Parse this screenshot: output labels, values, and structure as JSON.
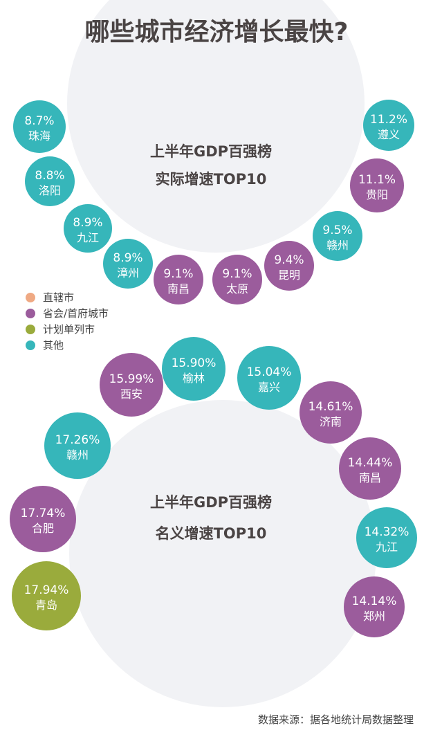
{
  "title": "哪些城市经济增长最快?",
  "legend": [
    {
      "label": "直辖市",
      "color": "#efa983"
    },
    {
      "label": "省会/首府城市",
      "color": "#9b5c9c"
    },
    {
      "label": "计划单列市",
      "color": "#9aab3c"
    },
    {
      "label": "其他",
      "color": "#36b6ba"
    }
  ],
  "source": "数据来源：据各地统计局数据整理",
  "chart_data": [
    {
      "type": "bubble",
      "title": [
        "上半年GDP百强榜",
        "实际增速TOP10"
      ],
      "unit": "%",
      "points": [
        {
          "city": "珠海",
          "value": 8.7,
          "label": "8.7%",
          "category": "其他"
        },
        {
          "city": "洛阳",
          "value": 8.8,
          "label": "8.8%",
          "category": "其他"
        },
        {
          "city": "九江",
          "value": 8.9,
          "label": "8.9%",
          "category": "其他"
        },
        {
          "city": "漳州",
          "value": 8.9,
          "label": "8.9%",
          "category": "其他"
        },
        {
          "city": "南昌",
          "value": 9.1,
          "label": "9.1%",
          "category": "省会/首府城市"
        },
        {
          "city": "太原",
          "value": 9.1,
          "label": "9.1%",
          "category": "省会/首府城市"
        },
        {
          "city": "昆明",
          "value": 9.4,
          "label": "9.4%",
          "category": "省会/首府城市"
        },
        {
          "city": "赣州",
          "value": 9.5,
          "label": "9.5%",
          "category": "其他"
        },
        {
          "city": "贵阳",
          "value": 11.1,
          "label": "11.1%",
          "category": "省会/首府城市"
        },
        {
          "city": "遵义",
          "value": 11.2,
          "label": "11.2%",
          "category": "其他"
        }
      ]
    },
    {
      "type": "bubble",
      "title": [
        "上半年GDP百强榜",
        "名义增速TOP10"
      ],
      "unit": "%",
      "points": [
        {
          "city": "青岛",
          "value": 17.94,
          "label": "17.94%",
          "category": "计划单列市"
        },
        {
          "city": "合肥",
          "value": 17.74,
          "label": "17.74%",
          "category": "省会/首府城市"
        },
        {
          "city": "赣州",
          "value": 17.26,
          "label": "17.26%",
          "category": "其他"
        },
        {
          "city": "西安",
          "value": 15.99,
          "label": "15.99%",
          "category": "省会/首府城市"
        },
        {
          "city": "榆林",
          "value": 15.9,
          "label": "15.90%",
          "category": "其他"
        },
        {
          "city": "嘉兴",
          "value": 15.04,
          "label": "15.04%",
          "category": "其他"
        },
        {
          "city": "济南",
          "value": 14.61,
          "label": "14.61%",
          "category": "省会/首府城市"
        },
        {
          "city": "南昌",
          "value": 14.44,
          "label": "14.44%",
          "category": "省会/首府城市"
        },
        {
          "city": "九江",
          "value": 14.32,
          "label": "14.32%",
          "category": "其他"
        },
        {
          "city": "郑州",
          "value": 14.14,
          "label": "14.14%",
          "category": "省会/首府城市"
        }
      ]
    }
  ]
}
